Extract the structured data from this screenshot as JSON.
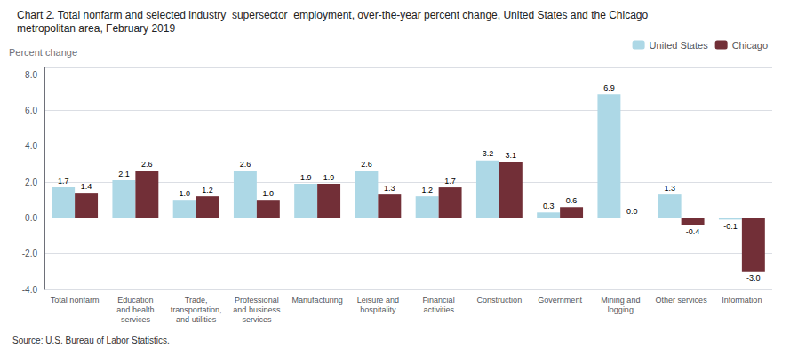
{
  "chart_data": {
    "type": "bar",
    "title": "Chart 2. Total nonfarm and selected industry  supersector  employment, over-the-year percent change, United States and the Chicago\nmetropolitan area, February 2019",
    "ylabel": "Percent change",
    "source": "Source: U.S. Bureau of Labor Statistics.",
    "categories": [
      "Total nonfarm",
      "Education\nand health\nservices",
      "Trade,\ntransportation,\nand utilities",
      "Professional\nand business\nservices",
      "Manufacturing",
      "Leisure and\nhospitality",
      "Financial\nactivities",
      "Construction",
      "Government",
      "Mining and\nlogging",
      "Other services",
      "Information"
    ],
    "series": [
      {
        "name": "United States",
        "color": "#add8e6",
        "values": [
          1.7,
          2.1,
          1.0,
          2.6,
          1.9,
          2.6,
          1.2,
          3.2,
          0.3,
          6.9,
          1.3,
          -0.1
        ],
        "value_labels": [
          "1.7",
          "2.1",
          "1.0",
          "2.6",
          "1.9",
          "2.6",
          "1.2",
          "3.2",
          "0.3",
          "6.9",
          "1.3",
          "-0.1"
        ]
      },
      {
        "name": "Chicago",
        "color": "#722f37",
        "values": [
          1.4,
          2.6,
          1.2,
          1.0,
          1.9,
          1.3,
          1.7,
          3.1,
          0.6,
          0.0,
          -0.4,
          -3.0
        ],
        "value_labels": [
          "1.4",
          "2.6",
          "1.2",
          "1.0",
          "1.9",
          "1.3",
          "1.7",
          "3.1",
          "0.6",
          "0.0",
          "-0.4",
          "-3.0"
        ]
      }
    ],
    "ylim": [
      -4.0,
      8.4
    ],
    "yticks": [
      {
        "value": -4,
        "label": "-4.0"
      },
      {
        "value": -2,
        "label": "-2.0"
      },
      {
        "value": 0,
        "label": "0.0"
      },
      {
        "value": 2,
        "label": "2.0"
      },
      {
        "value": 4,
        "label": "4.0"
      },
      {
        "value": 6,
        "label": "6.0"
      },
      {
        "value": 8,
        "label": "8.0"
      }
    ],
    "grid": true,
    "legend": "upper right",
    "data_labels": true
  }
}
